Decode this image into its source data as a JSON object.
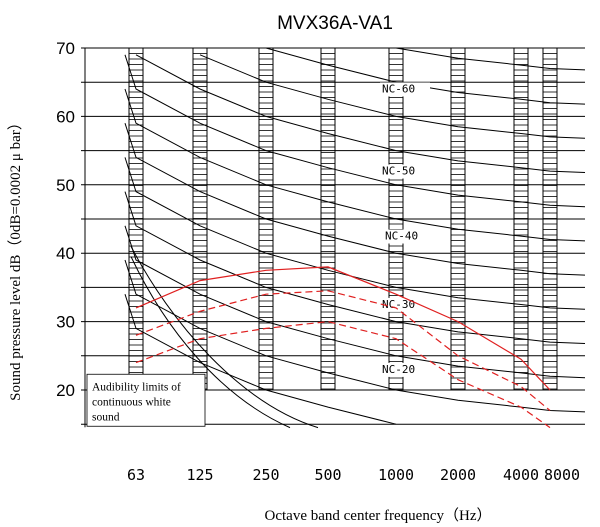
{
  "chart_data": {
    "type": "line",
    "title": "MVX36A-VA1",
    "xlabel": "Octave band center frequency（Hz）",
    "ylabel": "Sound pressure level dB（0dB=0.0002 μ bar）",
    "categories": [
      "63",
      "125",
      "250",
      "500",
      "1000",
      "2000",
      "4000",
      "8000"
    ],
    "y_ticks": [
      "20",
      "30",
      "40",
      "50",
      "60",
      "70"
    ],
    "ylim": [
      15,
      70
    ],
    "grid": true,
    "annotation": "Audibility limits of continuous white sound",
    "nc_labels": [
      "NC-60",
      "NC-50",
      "NC-40",
      "NC-30",
      "NC-20"
    ],
    "series": [
      {
        "name": "",
        "style": "solid-red",
        "values": [
          32,
          36,
          37.5,
          38,
          34,
          30,
          24.5,
          20
        ]
      },
      {
        "name": "",
        "style": "dashed-red",
        "values": [
          28,
          31.5,
          34,
          34.5,
          32,
          25,
          20.5,
          17
        ]
      },
      {
        "name": "",
        "style": "dashed-red",
        "values": [
          24,
          27.5,
          29,
          30,
          27.5,
          21.5,
          17.5,
          14.5
        ]
      }
    ],
    "colors": {
      "measured": "#e02020",
      "grid": "#000000"
    }
  }
}
